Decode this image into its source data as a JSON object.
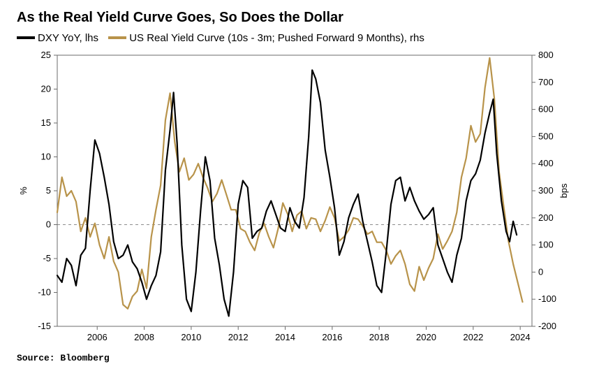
{
  "title": "As the Real Yield Curve Goes, So Does the Dollar",
  "legend": {
    "series1_label": "DXY YoY, lhs",
    "series1_color": "#000000",
    "series2_label": "US Real Yield Curve (10s - 3m; Pushed Forward 9 Months), rhs",
    "series2_color": "#b8934a"
  },
  "source": "Source: Bloomberg",
  "chart": {
    "type": "line",
    "background_color": "#ffffff",
    "grid_color": "#9aa0a6",
    "border_color": "#6b6b6b",
    "zero_line_color": "#8c8c8c",
    "left_axis": {
      "label": "%",
      "min": -15,
      "max": 25,
      "ticks": [
        -15,
        -10,
        -5,
        0,
        5,
        10,
        15,
        20,
        25
      ],
      "label_fontsize": 13
    },
    "right_axis": {
      "label": "bps",
      "min": -200,
      "max": 800,
      "ticks": [
        -200,
        -100,
        0,
        100,
        200,
        300,
        400,
        500,
        600,
        700,
        800
      ],
      "label_fontsize": 13
    },
    "x_axis": {
      "min": 2004.3,
      "max": 2024.5,
      "ticks": [
        2006,
        2008,
        2010,
        2012,
        2014,
        2016,
        2018,
        2020,
        2022,
        2024
      ],
      "label_fontsize": 13
    },
    "series1": {
      "name": "DXY YoY",
      "axis": "left",
      "color": "#000000",
      "line_width": 2.2,
      "data": [
        [
          2004.3,
          -7.5
        ],
        [
          2004.5,
          -8.5
        ],
        [
          2004.7,
          -5
        ],
        [
          2004.9,
          -6
        ],
        [
          2005.1,
          -9
        ],
        [
          2005.3,
          -4.5
        ],
        [
          2005.5,
          -3.5
        ],
        [
          2005.7,
          5
        ],
        [
          2005.9,
          12.5
        ],
        [
          2006.1,
          10.5
        ],
        [
          2006.3,
          7
        ],
        [
          2006.5,
          3
        ],
        [
          2006.7,
          -2.5
        ],
        [
          2006.9,
          -5
        ],
        [
          2007.1,
          -4.5
        ],
        [
          2007.3,
          -3
        ],
        [
          2007.5,
          -5.5
        ],
        [
          2007.7,
          -6.5
        ],
        [
          2007.9,
          -8.5
        ],
        [
          2008.1,
          -11
        ],
        [
          2008.3,
          -9
        ],
        [
          2008.5,
          -7.5
        ],
        [
          2008.7,
          -4
        ],
        [
          2008.9,
          8
        ],
        [
          2009.1,
          14
        ],
        [
          2009.25,
          19.5
        ],
        [
          2009.4,
          12
        ],
        [
          2009.6,
          -3
        ],
        [
          2009.8,
          -11
        ],
        [
          2010.0,
          -12.8
        ],
        [
          2010.2,
          -7
        ],
        [
          2010.4,
          2
        ],
        [
          2010.6,
          10
        ],
        [
          2010.8,
          6.5
        ],
        [
          2011.0,
          -2
        ],
        [
          2011.2,
          -6
        ],
        [
          2011.4,
          -11
        ],
        [
          2011.6,
          -13.5
        ],
        [
          2011.8,
          -7
        ],
        [
          2012.0,
          3
        ],
        [
          2012.2,
          6.5
        ],
        [
          2012.4,
          5.5
        ],
        [
          2012.6,
          -2
        ],
        [
          2012.8,
          -1
        ],
        [
          2013.0,
          -0.5
        ],
        [
          2013.2,
          2
        ],
        [
          2013.4,
          3.5
        ],
        [
          2013.6,
          1.5
        ],
        [
          2013.8,
          -0.5
        ],
        [
          2014.0,
          -1
        ],
        [
          2014.2,
          2.5
        ],
        [
          2014.4,
          0.5
        ],
        [
          2014.6,
          -0.5
        ],
        [
          2014.8,
          4
        ],
        [
          2015.0,
          13
        ],
        [
          2015.15,
          22.8
        ],
        [
          2015.3,
          21.5
        ],
        [
          2015.5,
          18
        ],
        [
          2015.7,
          11
        ],
        [
          2015.9,
          7
        ],
        [
          2016.1,
          2.5
        ],
        [
          2016.3,
          -4.5
        ],
        [
          2016.5,
          -2.5
        ],
        [
          2016.7,
          1
        ],
        [
          2016.9,
          3
        ],
        [
          2017.1,
          4.5
        ],
        [
          2017.3,
          0.5
        ],
        [
          2017.5,
          -2.5
        ],
        [
          2017.7,
          -5.5
        ],
        [
          2017.9,
          -9
        ],
        [
          2018.1,
          -10
        ],
        [
          2018.3,
          -4
        ],
        [
          2018.5,
          3
        ],
        [
          2018.7,
          6.5
        ],
        [
          2018.9,
          7
        ],
        [
          2019.1,
          3.5
        ],
        [
          2019.3,
          5.5
        ],
        [
          2019.5,
          3.5
        ],
        [
          2019.7,
          2
        ],
        [
          2019.9,
          0.8
        ],
        [
          2020.1,
          1.5
        ],
        [
          2020.3,
          2.5
        ],
        [
          2020.5,
          -3
        ],
        [
          2020.7,
          -5
        ],
        [
          2020.9,
          -7
        ],
        [
          2021.1,
          -8.5
        ],
        [
          2021.3,
          -4.5
        ],
        [
          2021.5,
          -2
        ],
        [
          2021.7,
          3.5
        ],
        [
          2021.9,
          6.5
        ],
        [
          2022.1,
          7.5
        ],
        [
          2022.3,
          9.5
        ],
        [
          2022.5,
          13.5
        ],
        [
          2022.7,
          16.5
        ],
        [
          2022.85,
          18.5
        ],
        [
          2023.0,
          10.5
        ],
        [
          2023.2,
          3.5
        ],
        [
          2023.4,
          -1
        ],
        [
          2023.55,
          -2.5
        ],
        [
          2023.7,
          0.5
        ],
        [
          2023.85,
          -1.5
        ]
      ]
    },
    "series2": {
      "name": "US Real Yield Curve",
      "axis": "right",
      "color": "#b8934a",
      "line_width": 2.2,
      "data": [
        [
          2004.3,
          220
        ],
        [
          2004.5,
          350
        ],
        [
          2004.7,
          280
        ],
        [
          2004.9,
          300
        ],
        [
          2005.1,
          260
        ],
        [
          2005.3,
          150
        ],
        [
          2005.5,
          200
        ],
        [
          2005.7,
          130
        ],
        [
          2005.9,
          180
        ],
        [
          2006.1,
          100
        ],
        [
          2006.3,
          50
        ],
        [
          2006.5,
          130
        ],
        [
          2006.7,
          40
        ],
        [
          2006.9,
          0
        ],
        [
          2007.1,
          -120
        ],
        [
          2007.3,
          -135
        ],
        [
          2007.5,
          -90
        ],
        [
          2007.7,
          -70
        ],
        [
          2007.9,
          10
        ],
        [
          2008.1,
          -60
        ],
        [
          2008.3,
          130
        ],
        [
          2008.5,
          230
        ],
        [
          2008.7,
          320
        ],
        [
          2008.9,
          560
        ],
        [
          2009.1,
          660
        ],
        [
          2009.3,
          480
        ],
        [
          2009.5,
          370
        ],
        [
          2009.7,
          420
        ],
        [
          2009.9,
          340
        ],
        [
          2010.1,
          360
        ],
        [
          2010.3,
          400
        ],
        [
          2010.5,
          350
        ],
        [
          2010.7,
          310
        ],
        [
          2010.9,
          260
        ],
        [
          2011.1,
          290
        ],
        [
          2011.3,
          340
        ],
        [
          2011.5,
          285
        ],
        [
          2011.7,
          230
        ],
        [
          2011.9,
          230
        ],
        [
          2012.1,
          160
        ],
        [
          2012.3,
          150
        ],
        [
          2012.5,
          110
        ],
        [
          2012.7,
          80
        ],
        [
          2012.9,
          145
        ],
        [
          2013.1,
          180
        ],
        [
          2013.3,
          130
        ],
        [
          2013.5,
          90
        ],
        [
          2013.7,
          160
        ],
        [
          2013.9,
          255
        ],
        [
          2014.1,
          215
        ],
        [
          2014.3,
          150
        ],
        [
          2014.5,
          210
        ],
        [
          2014.7,
          225
        ],
        [
          2014.9,
          160
        ],
        [
          2015.1,
          200
        ],
        [
          2015.3,
          195
        ],
        [
          2015.5,
          150
        ],
        [
          2015.7,
          190
        ],
        [
          2015.9,
          240
        ],
        [
          2016.1,
          200
        ],
        [
          2016.3,
          115
        ],
        [
          2016.5,
          130
        ],
        [
          2016.7,
          155
        ],
        [
          2016.9,
          200
        ],
        [
          2017.1,
          195
        ],
        [
          2017.3,
          170
        ],
        [
          2017.5,
          140
        ],
        [
          2017.7,
          150
        ],
        [
          2017.9,
          110
        ],
        [
          2018.1,
          110
        ],
        [
          2018.3,
          80
        ],
        [
          2018.5,
          30
        ],
        [
          2018.7,
          60
        ],
        [
          2018.9,
          80
        ],
        [
          2019.1,
          30
        ],
        [
          2019.3,
          -45
        ],
        [
          2019.5,
          -70
        ],
        [
          2019.7,
          20
        ],
        [
          2019.9,
          -30
        ],
        [
          2020.1,
          15
        ],
        [
          2020.3,
          50
        ],
        [
          2020.5,
          140
        ],
        [
          2020.7,
          85
        ],
        [
          2020.9,
          115
        ],
        [
          2021.1,
          150
        ],
        [
          2021.3,
          220
        ],
        [
          2021.5,
          350
        ],
        [
          2021.7,
          420
        ],
        [
          2021.9,
          540
        ],
        [
          2022.1,
          480
        ],
        [
          2022.3,
          510
        ],
        [
          2022.5,
          680
        ],
        [
          2022.7,
          790
        ],
        [
          2022.9,
          640
        ],
        [
          2023.1,
          370
        ],
        [
          2023.3,
          240
        ],
        [
          2023.5,
          115
        ],
        [
          2023.7,
          30
        ],
        [
          2023.9,
          -40
        ],
        [
          2024.1,
          -110
        ]
      ]
    }
  }
}
